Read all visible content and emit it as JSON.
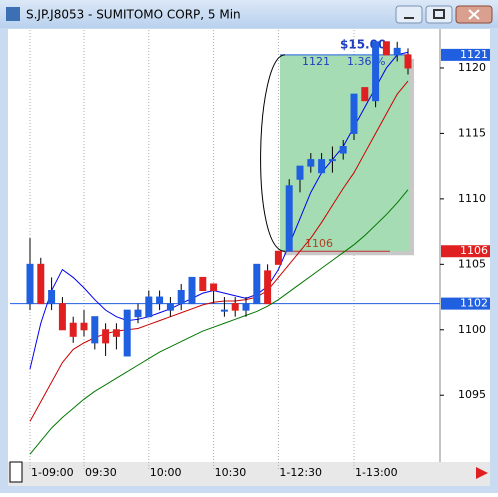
{
  "window_title": "S.JP.J8053 - SUMITOMO CORP, 5 Min",
  "chart_data": {
    "type": "candlestick",
    "categories": [
      "1-09:00",
      null,
      null,
      null,
      null,
      "09:30",
      null,
      null,
      null,
      null,
      null,
      "10:00",
      null,
      null,
      null,
      null,
      null,
      "10:30",
      null,
      null,
      null,
      null,
      null,
      "1-12:30",
      null,
      null,
      null,
      null,
      null,
      null,
      "1-13:00",
      null,
      null,
      null,
      null,
      null
    ],
    "open": [
      1102,
      1105,
      1102,
      1102,
      1100.5,
      1100.5,
      1099,
      1100,
      1100,
      1098,
      1101,
      1101,
      1102,
      1101.5,
      1102,
      1102,
      1104,
      1103.5,
      1101.5,
      1102,
      1101.5,
      1102,
      1104.5,
      1106,
      1106,
      1111.5,
      1112.5,
      1112,
      1113,
      1113.5,
      1115,
      1118.5,
      1117.5,
      1122,
      1121,
      1121
    ],
    "high": [
      1107,
      1105.5,
      1104,
      1102.5,
      1101,
      1101.5,
      1101,
      1100.5,
      1100.5,
      1101.5,
      1102,
      1103,
      1103,
      1102.5,
      1103.5,
      1104,
      1104,
      1103.5,
      1102.5,
      1102.5,
      1102.5,
      1105,
      1105,
      1106,
      1111.5,
      1112.5,
      1113.5,
      1113.5,
      1114,
      1114.5,
      1118,
      1118.5,
      1122,
      1122,
      1122,
      1121.5
    ],
    "low": [
      1101.5,
      1102,
      1101.5,
      1100,
      1099,
      1099.5,
      1098.5,
      1098,
      1098.5,
      1098,
      1100.5,
      1101,
      1101.5,
      1101,
      1101.5,
      1102,
      1103,
      1102,
      1101,
      1101,
      1101,
      1102,
      1102,
      1105,
      1106,
      1110.5,
      1112,
      1112,
      1112,
      1113,
      1114.5,
      1117.5,
      1117,
      1121,
      1120.5,
      1119.5
    ],
    "close": [
      1105,
      1102,
      1103,
      1100,
      1099.5,
      1100,
      1101,
      1099,
      1099.5,
      1101.5,
      1101.5,
      1102.5,
      1102.5,
      1102,
      1103,
      1104,
      1103,
      1103,
      1101.5,
      1101.5,
      1102,
      1105,
      1102,
      1105,
      1111,
      1112.5,
      1113,
      1113,
      1113,
      1114,
      1118,
      1117.5,
      1122,
      1121,
      1121.5,
      1120
    ],
    "up_color": "#1f5fe0",
    "down_color": "#e02020",
    "series": [
      {
        "color": "#0000ee",
        "values": [
          1097,
          1100.5,
          1103,
          1104.6,
          1104,
          1103.2,
          1102.3,
          1101.5,
          1101,
          1100.7,
          1100.8,
          1101,
          1101.3,
          1101.6,
          1102,
          1102.4,
          1102.8,
          1103,
          1102.8,
          1102.6,
          1102.4,
          1102.7,
          1103.3,
          1104.6,
          1106.5,
          1108.5,
          1110.5,
          1112,
          1113,
          1114,
          1115.5,
          1117,
          1118.5,
          1120,
          1121,
          1121.2
        ]
      },
      {
        "color": "#cc0000",
        "values": [
          1093,
          1094.5,
          1096,
          1097.5,
          1098.5,
          1099,
          1099.4,
          1099.7,
          1099.9,
          1100,
          1100.1,
          1100.4,
          1100.7,
          1101,
          1101.3,
          1101.6,
          1101.9,
          1102.1,
          1102.2,
          1102.2,
          1102.3,
          1102.5,
          1103,
          1104,
          1105,
          1106,
          1107,
          1108.2,
          1109.5,
          1110.8,
          1112,
          1113.5,
          1115,
          1116.5,
          1118,
          1119
        ]
      },
      {
        "color": "#007700",
        "values": [
          1090.5,
          1091.5,
          1092.5,
          1093.3,
          1094,
          1094.7,
          1095.3,
          1095.8,
          1096.3,
          1096.8,
          1097.3,
          1097.8,
          1098.3,
          1098.7,
          1099.1,
          1099.5,
          1099.9,
          1100.2,
          1100.5,
          1100.8,
          1101.1,
          1101.4,
          1101.8,
          1102.3,
          1102.9,
          1103.5,
          1104.1,
          1104.7,
          1105.3,
          1105.9,
          1106.5,
          1107.2,
          1108,
          1108.8,
          1109.7,
          1110.7
        ]
      }
    ],
    "ylim": [
      1089.9,
      1122.9
    ],
    "yticks": [
      1095,
      1100,
      1105,
      1110,
      1115,
      1120
    ],
    "price_markers": [
      {
        "value": 1121,
        "color": "#1f5fe0"
      },
      {
        "value": 1106,
        "color": "#e02020"
      },
      {
        "value": 1102,
        "color": "#1f5fe0"
      }
    ],
    "annotation": {
      "top": 1121,
      "bottom": 1106,
      "amount": "$15.00",
      "percent": "1.36 %"
    }
  }
}
